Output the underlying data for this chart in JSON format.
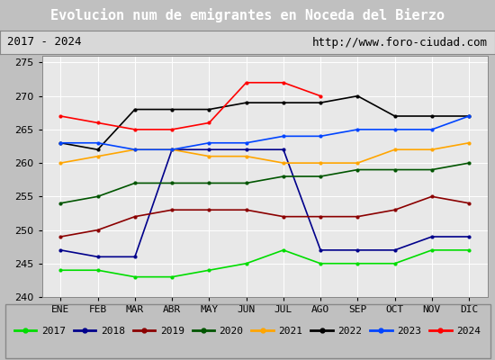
{
  "title": "Evolucion num de emigrantes en Noceda del Bierzo",
  "subtitle_left": "2017 - 2024",
  "subtitle_right": "http://www.foro-ciudad.com",
  "months": [
    "ENE",
    "FEB",
    "MAR",
    "ABR",
    "MAY",
    "JUN",
    "JUL",
    "AGO",
    "SEP",
    "OCT",
    "NOV",
    "DIC"
  ],
  "ylim": [
    240,
    276
  ],
  "yticks": [
    240,
    245,
    250,
    255,
    260,
    265,
    270,
    275
  ],
  "series": {
    "2017": {
      "color": "#00dd00",
      "values": [
        244,
        244,
        243,
        243,
        244,
        245,
        247,
        245,
        245,
        245,
        247,
        247
      ]
    },
    "2018": {
      "color": "#00008b",
      "values": [
        247,
        246,
        246,
        262,
        262,
        262,
        262,
        247,
        247,
        247,
        249,
        249
      ]
    },
    "2019": {
      "color": "#8b0000",
      "values": [
        249,
        250,
        252,
        253,
        253,
        253,
        252,
        252,
        252,
        253,
        255,
        254
      ]
    },
    "2020": {
      "color": "#005500",
      "values": [
        254,
        255,
        257,
        257,
        257,
        257,
        258,
        258,
        259,
        259,
        259,
        260
      ]
    },
    "2021": {
      "color": "#ffa500",
      "values": [
        260,
        261,
        262,
        262,
        261,
        261,
        260,
        260,
        260,
        262,
        262,
        263
      ]
    },
    "2022": {
      "color": "#000000",
      "values": [
        263,
        262,
        268,
        268,
        268,
        269,
        269,
        269,
        270,
        267,
        267,
        267
      ]
    },
    "2023": {
      "color": "#0044ff",
      "values": [
        263,
        263,
        262,
        262,
        263,
        263,
        264,
        264,
        265,
        265,
        265,
        267
      ]
    },
    "2024": {
      "color": "#ff0000",
      "values": [
        267,
        266,
        265,
        265,
        266,
        272,
        272,
        270,
        null,
        null,
        null,
        null
      ]
    }
  },
  "bg_title": "#4a86c8",
  "bg_subtitle": "#d8d8d8",
  "bg_plot": "#e8e8e8",
  "grid_color": "#ffffff",
  "title_color": "#ffffff",
  "subtitle_border": "#888888",
  "title_fontsize": 11,
  "subtitle_fontsize": 9,
  "tick_fontsize": 8,
  "legend_fontsize": 8,
  "linewidth": 1.2
}
